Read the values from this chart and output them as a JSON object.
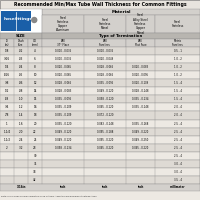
{
  "title": "Recommended Min/Max Tube Wall Thickness for Common Fittings",
  "material_header": "Material",
  "termination_header": "Type of Termination",
  "col_headers_material": [
    "Steel\nStainless\nCopper\nAluminum",
    "Steel\nStainless\nMonel",
    "Steel\nAlloy Steel\nStainless\nCopper\nMonel",
    "Steel\nStainless"
  ],
  "col_headers_term": [
    "SAE\n37° Flare",
    "SAE\nFlareless",
    "SAE\nFlat Face",
    "Metric\nFlareless"
  ],
  "size_headers": [
    "ID\n(in)",
    "Dash\nSize",
    "OD\n(mm)"
  ],
  "rows": [
    [
      "1/8",
      "-02",
      "4",
      "0.010 - 0.035",
      "0.010 - 0.035",
      "",
      "0.5 - 1"
    ],
    [
      "3/16",
      "-03",
      "6",
      "0.010 - 0.035",
      "0.020 - 0.049",
      "",
      "1.0 - 2"
    ],
    [
      "1/4",
      "-04",
      "8",
      "0.020 - 0.065",
      "0.028 - 0.065",
      "0.020 - 0.083",
      "1.0 - 2"
    ],
    [
      "5/16",
      "-05",
      "10",
      "0.020 - 0.065",
      "0.028 - 0.065",
      "0.020 - 0.095",
      "1.0 - 2"
    ],
    [
      "3/8",
      "-06",
      "12",
      "0.028 - 0.065",
      "0.035 - 0.095",
      "0.020 - 0.109",
      "1.5 - 4"
    ],
    [
      "1/2",
      "-08",
      "14",
      "0.028 - 0.083",
      "0.049 - 0.120",
      "0.028 - 0.148",
      "1.5 - 4"
    ],
    [
      "5/8",
      "-10",
      "15",
      "0.035 - 0.095",
      "0.058 - 0.120",
      "0.035 - 0.134",
      "1.5 - 4"
    ],
    [
      "3/4",
      "-12",
      "16",
      "0.035 - 0.109",
      "0.065 - 0.120",
      "0.035 - 0.148",
      "2.0 - 4"
    ],
    [
      "7/8",
      "-14",
      "18",
      "0.035 - 0.109",
      "0.072 - 0.120",
      "",
      "2.0 - 4"
    ],
    [
      "1",
      "-16",
      "20",
      "0.035 - 0.120",
      "0.083 - 0.148",
      "0.035 - 0.168",
      "2.5 - 4"
    ],
    [
      "1-1/4",
      "-20",
      "22",
      "0.049 - 0.120",
      "0.095 - 0.188",
      "0.049 - 0.220",
      "2.5 - 4"
    ],
    [
      "1-1/2",
      "-24",
      "25",
      "0.049 - 0.120",
      "0.095 - 0.220",
      "0.049 - 0.250",
      "2.5 - 4"
    ],
    [
      "2",
      "-32",
      "28",
      "0.058 - 0.134",
      "0.065 - 0.220",
      "0.065 - 0.220",
      "2.5 - 4"
    ],
    [
      "",
      "",
      "30",
      "",
      "",
      "",
      "2.5 - 4"
    ],
    [
      "",
      "",
      "35",
      "",
      "",
      "",
      "3.0 - 4"
    ],
    [
      "",
      "",
      "38",
      "",
      "",
      "",
      "3.0 - 4"
    ],
    [
      "",
      "",
      "42",
      "",
      "",
      "",
      "3.5 - 4"
    ]
  ],
  "units_row": [
    "1/16in",
    "inch",
    "inch",
    "inch",
    "millimeter"
  ],
  "footnote": "Data from Parker Hannifin Industrial Tube Fittings, Adapters and Equipment Catalog 4300",
  "bg_color": "#ede9e3",
  "header_bg": "#d3d0cc",
  "stripe_even": "#dedad4",
  "stripe_odd": "#ede9e3",
  "dark_header_bg": "#b8b5b0",
  "logo_blue": "#1a5fa8",
  "logo_gray": "#888888",
  "title_bg": "#e8e4de"
}
